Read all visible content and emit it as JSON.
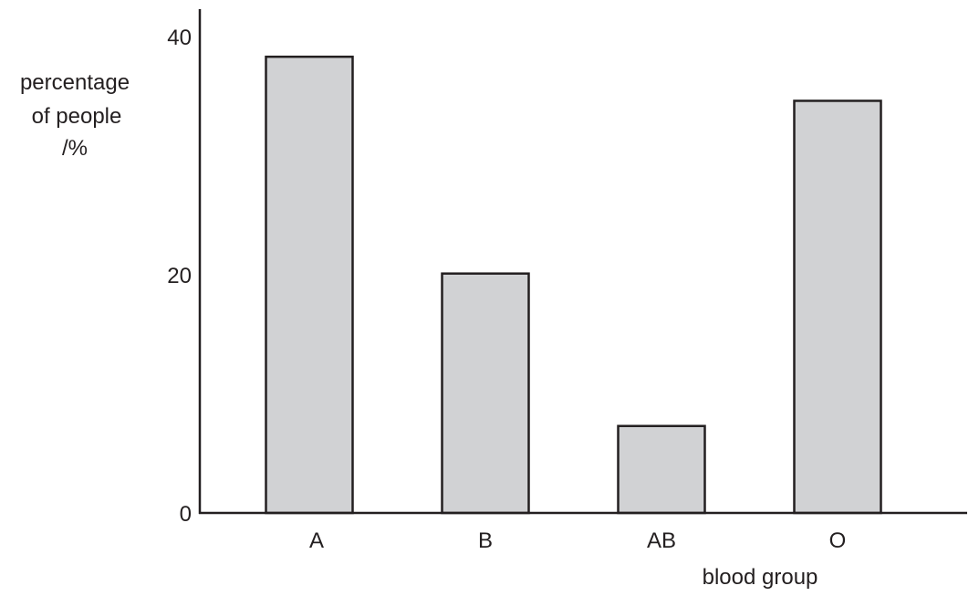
{
  "chart_data": {
    "type": "bar",
    "categories": [
      "A",
      "B",
      "AB",
      "O"
    ],
    "values": [
      38.3,
      20.1,
      7.3,
      34.6
    ],
    "title": "",
    "xlabel": "blood group",
    "ylabel_lines": [
      "percentage",
      "of people",
      "/%"
    ],
    "yticks": [
      "0",
      "20",
      "40"
    ],
    "ylim": [
      0,
      40
    ],
    "grid": false,
    "legend": "none",
    "bar_color": "#d1d2d4",
    "edge_color": "#231f20"
  }
}
